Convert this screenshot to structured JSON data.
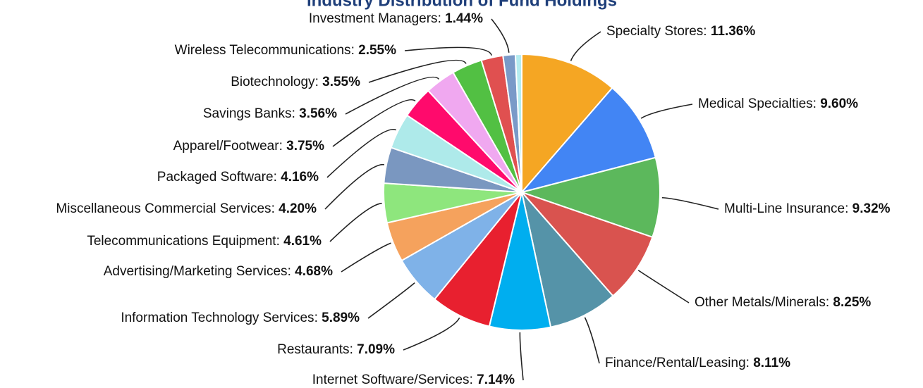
{
  "chart_data": {
    "type": "pie",
    "title": "Industry Distribution of Fund Holdings",
    "categories": [
      "Specialty Stores",
      "Medical Specialties",
      "Multi-Line Insurance",
      "Other Metals/Minerals",
      "Finance/Rental/Leasing",
      "Internet Software/Services",
      "Restaurants",
      "Information Technology Services",
      "Advertising/Marketing Services",
      "Telecommunications Equipment",
      "Miscellaneous Commercial Services",
      "Packaged Software",
      "Apparel/Footwear",
      "Savings Banks",
      "Biotechnology",
      "Wireless Telecommunications",
      "Investment Managers",
      null
    ],
    "values": [
      11.36,
      9.6,
      9.32,
      8.25,
      8.11,
      7.14,
      7.09,
      5.89,
      4.68,
      4.61,
      4.2,
      4.16,
      3.75,
      3.56,
      3.55,
      2.55,
      1.44,
      0.74
    ],
    "value_labels": [
      "11.36%",
      "9.60%",
      "9.32%",
      "8.25%",
      "8.11%",
      "7.14%",
      "7.09%",
      "5.89%",
      "4.68%",
      "4.61%",
      "4.20%",
      "4.16%",
      "3.75%",
      "3.56%",
      "3.55%",
      "2.55%",
      "1.44%",
      null
    ],
    "colors": [
      "#f5a623",
      "#4285f4",
      "#5cb85c",
      "#d9534f",
      "#5593a8",
      "#00aeef",
      "#e8202f",
      "#7fb2e8",
      "#f5a25d",
      "#8ee67d",
      "#7a97c0",
      "#aeeaea",
      "#ff0a6c",
      "#f0a8f0",
      "#52c043",
      "#e05050",
      "#7a9ac8",
      "#b5ecf0"
    ]
  }
}
